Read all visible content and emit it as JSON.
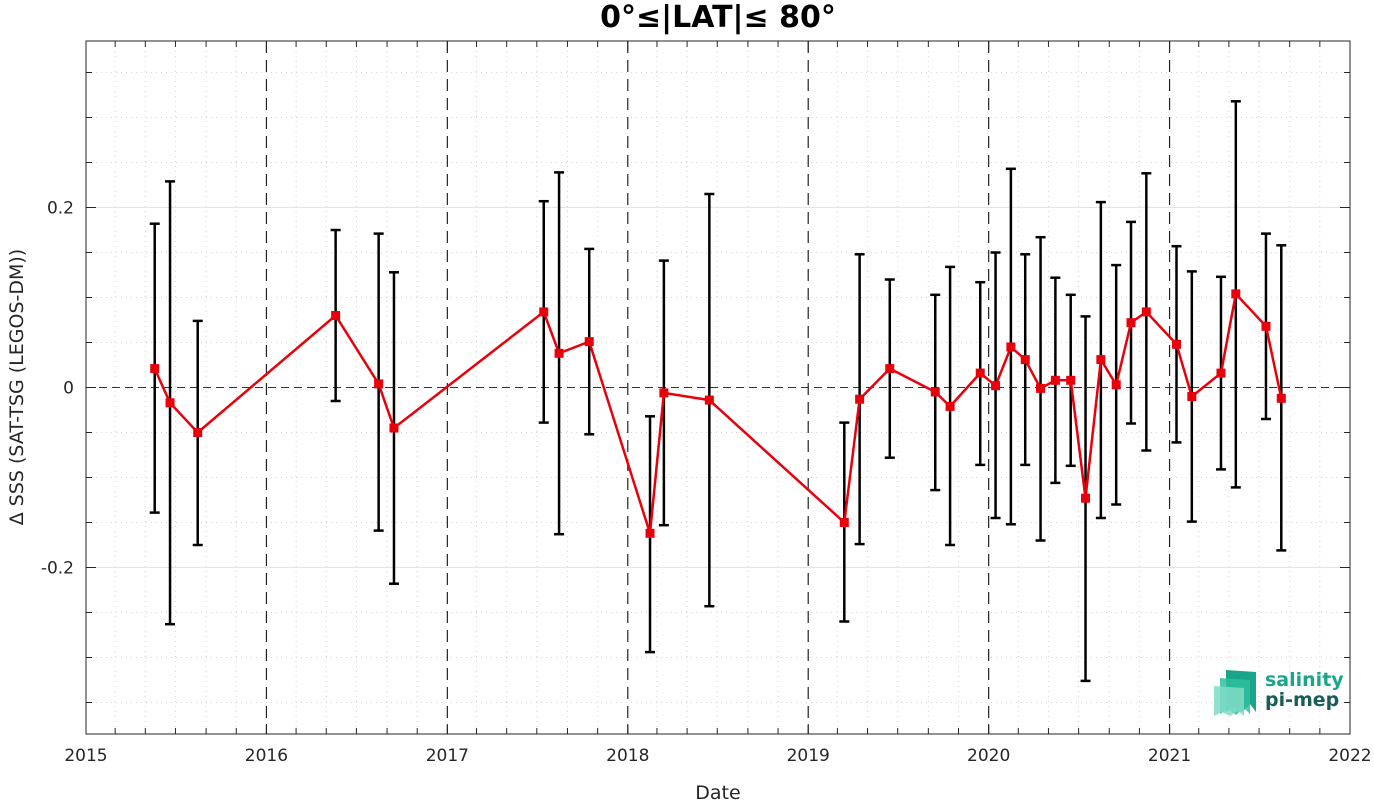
{
  "chart_data": {
    "type": "line",
    "title": "0°≤|LAT|≤ 80°",
    "xlabel": "Date",
    "ylabel": "Δ SSS (SAT-TSG (LEGOS-DM))",
    "xlim": [
      "2015-01-01",
      "2022-01-01"
    ],
    "ylim": [
      -0.385,
      0.385
    ],
    "x_ticks": [
      "2015-01-01",
      "2016-01-01",
      "2017-01-01",
      "2018-01-01",
      "2019-01-01",
      "2020-01-01",
      "2021-01-01",
      "2022-01-01"
    ],
    "x_tick_labels": [
      "2015",
      "2016",
      "2017",
      "2018",
      "2019",
      "2020",
      "2021",
      "2022"
    ],
    "y_ticks": [
      -0.2,
      0,
      0.2
    ],
    "y_tick_labels": [
      "-0.2",
      "0",
      "0.2"
    ],
    "grid": "dotted",
    "year_divider_lines": "dashed",
    "zero_line": "dashed",
    "series": [
      {
        "color": "#e8000b",
        "marker": "square",
        "points": [
          {
            "x": "2015-05-20",
            "y": 0.021,
            "ylo": -0.139,
            "yhi": 0.182
          },
          {
            "x": "2015-06-20",
            "y": -0.017,
            "ylo": -0.263,
            "yhi": 0.229
          },
          {
            "x": "2015-08-15",
            "y": -0.05,
            "ylo": -0.175,
            "yhi": 0.074
          },
          {
            "x": "2016-05-20",
            "y": 0.08,
            "ylo": -0.015,
            "yhi": 0.175
          },
          {
            "x": "2016-08-15",
            "y": 0.004,
            "ylo": -0.159,
            "yhi": 0.171
          },
          {
            "x": "2016-09-15",
            "y": -0.045,
            "ylo": -0.218,
            "yhi": 0.128
          },
          {
            "x": "2017-07-15",
            "y": 0.084,
            "ylo": -0.039,
            "yhi": 0.207
          },
          {
            "x": "2017-08-15",
            "y": 0.038,
            "ylo": -0.163,
            "yhi": 0.239
          },
          {
            "x": "2017-10-15",
            "y": 0.051,
            "ylo": -0.052,
            "yhi": 0.154
          },
          {
            "x": "2018-02-15",
            "y": -0.162,
            "ylo": -0.294,
            "yhi": -0.032
          },
          {
            "x": "2018-03-15",
            "y": -0.006,
            "ylo": -0.153,
            "yhi": 0.141
          },
          {
            "x": "2018-06-15",
            "y": -0.014,
            "ylo": -0.243,
            "yhi": 0.215
          },
          {
            "x": "2019-03-15",
            "y": -0.15,
            "ylo": -0.26,
            "yhi": -0.039
          },
          {
            "x": "2019-04-15",
            "y": -0.013,
            "ylo": -0.174,
            "yhi": 0.148
          },
          {
            "x": "2019-06-15",
            "y": 0.021,
            "ylo": -0.078,
            "yhi": 0.12
          },
          {
            "x": "2019-09-15",
            "y": -0.005,
            "ylo": -0.114,
            "yhi": 0.103
          },
          {
            "x": "2019-10-15",
            "y": -0.021,
            "ylo": -0.175,
            "yhi": 0.134
          },
          {
            "x": "2019-12-15",
            "y": 0.016,
            "ylo": -0.086,
            "yhi": 0.117
          },
          {
            "x": "2020-01-15",
            "y": 0.002,
            "ylo": -0.145,
            "yhi": 0.15
          },
          {
            "x": "2020-02-15",
            "y": 0.045,
            "ylo": -0.152,
            "yhi": 0.243
          },
          {
            "x": "2020-03-15",
            "y": 0.031,
            "ylo": -0.086,
            "yhi": 0.148
          },
          {
            "x": "2020-04-15",
            "y": -0.001,
            "ylo": -0.17,
            "yhi": 0.167
          },
          {
            "x": "2020-05-15",
            "y": 0.008,
            "ylo": -0.106,
            "yhi": 0.122
          },
          {
            "x": "2020-06-15",
            "y": 0.008,
            "ylo": -0.087,
            "yhi": 0.103
          },
          {
            "x": "2020-07-15",
            "y": -0.123,
            "ylo": -0.326,
            "yhi": 0.079
          },
          {
            "x": "2020-08-15",
            "y": 0.031,
            "ylo": -0.145,
            "yhi": 0.206
          },
          {
            "x": "2020-09-15",
            "y": 0.003,
            "ylo": -0.13,
            "yhi": 0.136
          },
          {
            "x": "2020-10-15",
            "y": 0.072,
            "ylo": -0.04,
            "yhi": 0.184
          },
          {
            "x": "2020-11-15",
            "y": 0.084,
            "ylo": -0.07,
            "yhi": 0.238
          },
          {
            "x": "2021-01-15",
            "y": 0.048,
            "ylo": -0.061,
            "yhi": 0.157
          },
          {
            "x": "2021-02-15",
            "y": -0.01,
            "ylo": -0.149,
            "yhi": 0.129
          },
          {
            "x": "2021-04-15",
            "y": 0.016,
            "ylo": -0.091,
            "yhi": 0.123
          },
          {
            "x": "2021-05-15",
            "y": 0.104,
            "ylo": -0.111,
            "yhi": 0.318
          },
          {
            "x": "2021-07-15",
            "y": 0.068,
            "ylo": -0.035,
            "yhi": 0.171
          },
          {
            "x": "2021-08-15",
            "y": -0.012,
            "ylo": -0.181,
            "yhi": 0.158
          }
        ]
      }
    ],
    "error_bar_color": "#000000"
  },
  "logo": {
    "line1": "salinity",
    "line2": "pi-mep"
  }
}
